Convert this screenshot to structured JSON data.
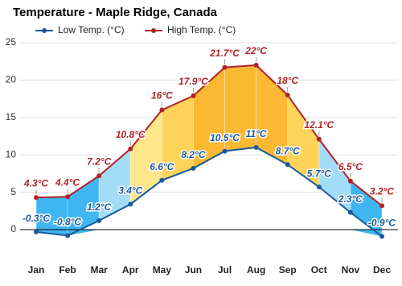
{
  "chart_data": {
    "type": "line",
    "title": "Temperature - Maple Ridge, Canada",
    "categories": [
      "Jan",
      "Feb",
      "Mar",
      "Apr",
      "May",
      "Jun",
      "Jul",
      "Aug",
      "Sep",
      "Oct",
      "Nov",
      "Dec"
    ],
    "series": [
      {
        "name": "Low Temp. (°C)",
        "color": "#1a5a9c",
        "values": [
          -0.3,
          -0.8,
          1.2,
          3.4,
          6.6,
          8.2,
          10.5,
          11,
          8.7,
          5.7,
          2.3,
          -0.9
        ],
        "value_labels": [
          "-0.3°C",
          "-0.8°C",
          "1.2°C",
          "3.4°C",
          "6.6°C",
          "8.2°C",
          "10.5°C",
          "11°C",
          "8.7°C",
          "5.7°C",
          "2.3°C",
          "-0.9°C"
        ]
      },
      {
        "name": "High Temp. (°C)",
        "color": "#b0222a",
        "values": [
          4.3,
          4.4,
          7.2,
          10.8,
          16,
          17.9,
          21.7,
          22,
          18,
          12.1,
          6.5,
          3.2
        ],
        "value_labels": [
          "4.3°C",
          "4.4°C",
          "7.2°C",
          "10.8°C",
          "16°C",
          "17.9°C",
          "21.7°C",
          "22°C",
          "18°C",
          "12.1°C",
          "6.5°C",
          "3.2°C"
        ]
      }
    ],
    "ylim": [
      -2,
      25
    ],
    "yticks": [
      0,
      5,
      10,
      15,
      20,
      25
    ],
    "grid": true,
    "legend": "top-left"
  }
}
